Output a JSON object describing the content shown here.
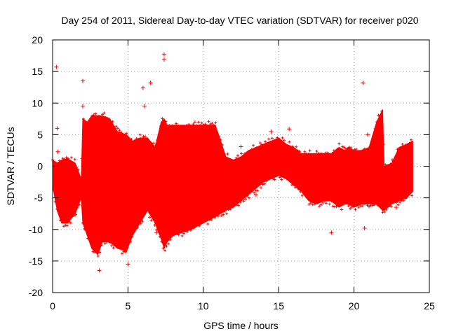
{
  "chart_data": {
    "type": "scatter",
    "title": "Day 254 of 2011, Sidereal Day-to-day VTEC variation (SDTVAR) for receiver p020",
    "xlabel": "GPS time / hours",
    "ylabel": "SDTVAR / TECUs",
    "xlim": [
      0,
      25
    ],
    "ylim": [
      -20,
      20
    ],
    "xticks": [
      0,
      5,
      10,
      15,
      20,
      25
    ],
    "yticks": [
      -20,
      -15,
      -10,
      -5,
      0,
      5,
      10,
      15,
      20
    ],
    "grid": true,
    "marker": "+",
    "series": [
      {
        "name": "p020",
        "color": "#ff0000",
        "envelope_x": [
          0.0,
          0.3,
          0.6,
          1.0,
          1.5,
          1.9,
          2.0,
          2.3,
          2.6,
          3.0,
          3.3,
          3.8,
          4.3,
          4.9,
          5.3,
          5.8,
          6.3,
          6.8,
          7.2,
          7.4,
          7.6,
          8.0,
          8.6,
          9.2,
          10.0,
          10.8,
          11.5,
          12.0,
          12.5,
          13.0,
          13.5,
          14.0,
          14.5,
          15.0,
          15.5,
          16.0,
          16.5,
          17.0,
          17.5,
          18.0,
          18.5,
          19.0,
          19.4,
          19.6,
          20.0,
          20.5,
          21.0,
          21.5,
          21.9,
          22.0,
          22.5,
          23.0,
          23.5,
          23.9
        ],
        "envelope_upper": [
          1.0,
          0.5,
          1.0,
          1.2,
          0.5,
          -2.0,
          7.5,
          7.0,
          8.0,
          8.0,
          8.0,
          7.5,
          5.5,
          5.0,
          4.0,
          4.5,
          4.5,
          3.0,
          7.0,
          7.5,
          6.5,
          6.5,
          6.5,
          6.5,
          6.5,
          6.5,
          1.5,
          1.0,
          1.5,
          2.5,
          3.0,
          3.5,
          4.0,
          4.5,
          3.5,
          3.0,
          2.0,
          2.0,
          2.0,
          2.0,
          2.0,
          3.0,
          2.5,
          3.0,
          2.5,
          2.5,
          3.0,
          7.0,
          9.0,
          0.0,
          0.5,
          3.0,
          3.5,
          4.0
        ],
        "envelope_lower": [
          -3.0,
          -7.0,
          -9.0,
          -9.0,
          -7.5,
          -5.0,
          -9.0,
          -11.0,
          -13.0,
          -14.0,
          -12.0,
          -12.0,
          -13.0,
          -13.5,
          -11.0,
          -9.0,
          -7.0,
          -9.0,
          -11.5,
          -13.0,
          -12.0,
          -11.0,
          -10.5,
          -10.0,
          -9.0,
          -8.0,
          -7.0,
          -6.5,
          -5.5,
          -4.5,
          -3.5,
          -2.5,
          -2.0,
          -1.5,
          -2.0,
          -3.0,
          -4.0,
          -5.5,
          -6.0,
          -5.5,
          -5.5,
          -6.5,
          -6.0,
          -6.0,
          -6.5,
          -6.0,
          -6.0,
          -6.0,
          -7.0,
          -7.0,
          -6.0,
          -5.5,
          -5.0,
          -4.0
        ],
        "outliers": [
          [
            0.25,
            15.7
          ],
          [
            0.3,
            6.0
          ],
          [
            0.35,
            2.3
          ],
          [
            2.0,
            13.5
          ],
          [
            2.0,
            9.5
          ],
          [
            6.0,
            12.4
          ],
          [
            6.1,
            9.5
          ],
          [
            6.5,
            13.2
          ],
          [
            6.9,
            -10.5
          ],
          [
            7.4,
            17.7
          ],
          [
            7.4,
            16.9
          ],
          [
            3.1,
            -16.5
          ],
          [
            5.0,
            -15.5
          ],
          [
            12.5,
            3.1
          ],
          [
            13.5,
            -4.5
          ],
          [
            14.5,
            5.5
          ],
          [
            15.7,
            5.9
          ],
          [
            18.5,
            -10.5
          ],
          [
            20.6,
            13.2
          ],
          [
            20.7,
            -9.8
          ],
          [
            20.9,
            5.0
          ],
          [
            22.8,
            -6.5
          ]
        ]
      }
    ]
  }
}
